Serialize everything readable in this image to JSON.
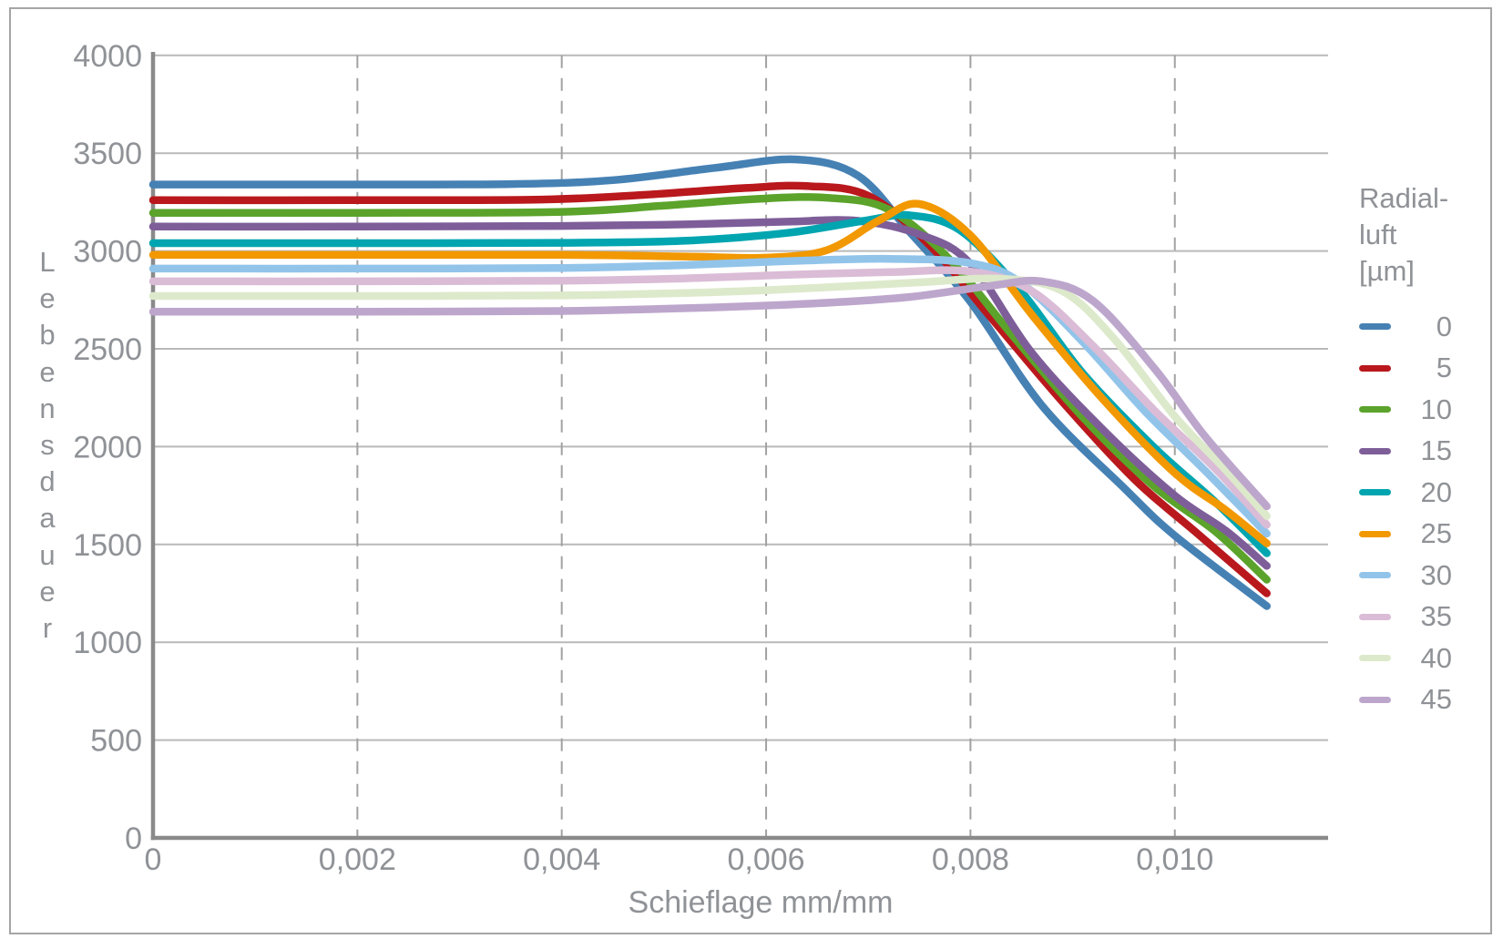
{
  "figure": {
    "background": "#ffffff",
    "border_color": "#a5a5a5"
  },
  "chart_data": {
    "type": "line",
    "title": "",
    "xlabel": "Schieflage mm/mm",
    "ylabel": "Lebensdauer",
    "xlim": [
      0,
      0.0115
    ],
    "ylim": [
      0,
      4000
    ],
    "grid": {
      "horizontal": "solid",
      "vertical": "dashed"
    },
    "styles": {
      "axis_color": "#8a8a8a",
      "grid_color": "#b9b9b9",
      "dash_color": "#a2a2a2",
      "text_color": "#8f9296",
      "line_width": 8.5
    },
    "x_ticks": [
      {
        "v": 0,
        "label": "0"
      },
      {
        "v": 0.002,
        "label": "0,002"
      },
      {
        "v": 0.004,
        "label": "0,004"
      },
      {
        "v": 0.006,
        "label": "0,006"
      },
      {
        "v": 0.008,
        "label": "0,008"
      },
      {
        "v": 0.01,
        "label": "0,010"
      }
    ],
    "y_ticks": [
      {
        "v": 0,
        "label": "0"
      },
      {
        "v": 500,
        "label": "500"
      },
      {
        "v": 1000,
        "label": "1000"
      },
      {
        "v": 1500,
        "label": "1500"
      },
      {
        "v": 2000,
        "label": "2000"
      },
      {
        "v": 2500,
        "label": "2500"
      },
      {
        "v": 3000,
        "label": "3000"
      },
      {
        "v": 3500,
        "label": "3500"
      },
      {
        "v": 4000,
        "label": "4000"
      }
    ],
    "legend": {
      "position": "right",
      "title_lines": [
        "Radial-",
        "luft",
        "[µm]"
      ],
      "items": [
        {
          "label": "0",
          "color": "#4681b4"
        },
        {
          "label": "5",
          "color": "#b9181d"
        },
        {
          "label": "10",
          "color": "#5ba32b"
        },
        {
          "label": "15",
          "color": "#7e5e99"
        },
        {
          "label": "20",
          "color": "#00a5b0"
        },
        {
          "label": "25",
          "color": "#f29800"
        },
        {
          "label": "30",
          "color": "#92c4ea"
        },
        {
          "label": "35",
          "color": "#dabcd6"
        },
        {
          "label": "40",
          "color": "#dde9cb"
        },
        {
          "label": "45",
          "color": "#bda6cc"
        }
      ]
    },
    "series": [
      {
        "name": "0",
        "color": "#4681b4",
        "points": [
          [
            0,
            3340
          ],
          [
            0.002,
            3340
          ],
          [
            0.0035,
            3342
          ],
          [
            0.0045,
            3362
          ],
          [
            0.0055,
            3425
          ],
          [
            0.0063,
            3468
          ],
          [
            0.0069,
            3385
          ],
          [
            0.0074,
            3100
          ],
          [
            0.008,
            2740
          ],
          [
            0.0087,
            2210
          ],
          [
            0.0095,
            1790
          ],
          [
            0.01,
            1545
          ],
          [
            0.0109,
            1185
          ]
        ]
      },
      {
        "name": "5",
        "color": "#b9181d",
        "points": [
          [
            0,
            3260
          ],
          [
            0.002,
            3260
          ],
          [
            0.0038,
            3263
          ],
          [
            0.0048,
            3287
          ],
          [
            0.0058,
            3322
          ],
          [
            0.0064,
            3332
          ],
          [
            0.007,
            3282
          ],
          [
            0.0076,
            3030
          ],
          [
            0.0082,
            2660
          ],
          [
            0.0089,
            2230
          ],
          [
            0.0096,
            1835
          ],
          [
            0.0102,
            1565
          ],
          [
            0.0109,
            1250
          ]
        ]
      },
      {
        "name": "10",
        "color": "#5ba32b",
        "points": [
          [
            0,
            3195
          ],
          [
            0.002,
            3195
          ],
          [
            0.004,
            3200
          ],
          [
            0.005,
            3232
          ],
          [
            0.0059,
            3266
          ],
          [
            0.0066,
            3272
          ],
          [
            0.0072,
            3212
          ],
          [
            0.0078,
            2955
          ],
          [
            0.0084,
            2575
          ],
          [
            0.0091,
            2150
          ],
          [
            0.0098,
            1795
          ],
          [
            0.0104,
            1565
          ],
          [
            0.0109,
            1320
          ]
        ]
      },
      {
        "name": "15",
        "color": "#7e5e99",
        "points": [
          [
            0,
            3125
          ],
          [
            0.002,
            3125
          ],
          [
            0.004,
            3128
          ],
          [
            0.0052,
            3136
          ],
          [
            0.0062,
            3150
          ],
          [
            0.0069,
            3154
          ],
          [
            0.0075,
            3085
          ],
          [
            0.008,
            2935
          ],
          [
            0.0086,
            2480
          ],
          [
            0.0093,
            2085
          ],
          [
            0.01,
            1750
          ],
          [
            0.0105,
            1570
          ],
          [
            0.0109,
            1390
          ]
        ]
      },
      {
        "name": "20",
        "color": "#00a5b0",
        "points": [
          [
            0,
            3040
          ],
          [
            0.002,
            3040
          ],
          [
            0.004,
            3042
          ],
          [
            0.0052,
            3052
          ],
          [
            0.0062,
            3092
          ],
          [
            0.007,
            3158
          ],
          [
            0.0074,
            3183
          ],
          [
            0.0079,
            3105
          ],
          [
            0.0085,
            2790
          ],
          [
            0.0091,
            2375
          ],
          [
            0.0098,
            1995
          ],
          [
            0.0104,
            1715
          ],
          [
            0.0109,
            1455
          ]
        ]
      },
      {
        "name": "25",
        "color": "#f29800",
        "points": [
          [
            0,
            2980
          ],
          [
            0.002,
            2980
          ],
          [
            0.004,
            2980
          ],
          [
            0.0052,
            2972
          ],
          [
            0.006,
            2966
          ],
          [
            0.0066,
            3005
          ],
          [
            0.0071,
            3155
          ],
          [
            0.0075,
            3240
          ],
          [
            0.008,
            3080
          ],
          [
            0.0086,
            2675
          ],
          [
            0.0093,
            2240
          ],
          [
            0.01,
            1865
          ],
          [
            0.0105,
            1675
          ],
          [
            0.0109,
            1505
          ]
        ]
      },
      {
        "name": "30",
        "color": "#92c4ea",
        "points": [
          [
            0,
            2910
          ],
          [
            0.002,
            2910
          ],
          [
            0.004,
            2913
          ],
          [
            0.0052,
            2928
          ],
          [
            0.0062,
            2948
          ],
          [
            0.0072,
            2960
          ],
          [
            0.008,
            2938
          ],
          [
            0.0085,
            2835
          ],
          [
            0.0091,
            2535
          ],
          [
            0.0097,
            2185
          ],
          [
            0.0103,
            1875
          ],
          [
            0.0109,
            1555
          ]
        ]
      },
      {
        "name": "35",
        "color": "#dabcd6",
        "points": [
          [
            0,
            2845
          ],
          [
            0.002,
            2845
          ],
          [
            0.004,
            2848
          ],
          [
            0.0052,
            2860
          ],
          [
            0.0062,
            2878
          ],
          [
            0.0072,
            2892
          ],
          [
            0.008,
            2895
          ],
          [
            0.0086,
            2795
          ],
          [
            0.0092,
            2515
          ],
          [
            0.0098,
            2185
          ],
          [
            0.0104,
            1885
          ],
          [
            0.0109,
            1600
          ]
        ]
      },
      {
        "name": "40",
        "color": "#dde9cb",
        "points": [
          [
            0,
            2770
          ],
          [
            0.002,
            2770
          ],
          [
            0.004,
            2773
          ],
          [
            0.0055,
            2790
          ],
          [
            0.0065,
            2812
          ],
          [
            0.0075,
            2840
          ],
          [
            0.0083,
            2858
          ],
          [
            0.0089,
            2795
          ],
          [
            0.0094,
            2555
          ],
          [
            0.01,
            2155
          ],
          [
            0.0105,
            1880
          ],
          [
            0.0109,
            1645
          ]
        ]
      },
      {
        "name": "45",
        "color": "#bda6cc",
        "points": [
          [
            0,
            2690
          ],
          [
            0.002,
            2690
          ],
          [
            0.004,
            2693
          ],
          [
            0.0055,
            2712
          ],
          [
            0.0065,
            2733
          ],
          [
            0.0074,
            2765
          ],
          [
            0.0082,
            2822
          ],
          [
            0.0087,
            2845
          ],
          [
            0.0092,
            2745
          ],
          [
            0.0098,
            2400
          ],
          [
            0.0103,
            2050
          ],
          [
            0.0109,
            1695
          ]
        ]
      }
    ]
  }
}
